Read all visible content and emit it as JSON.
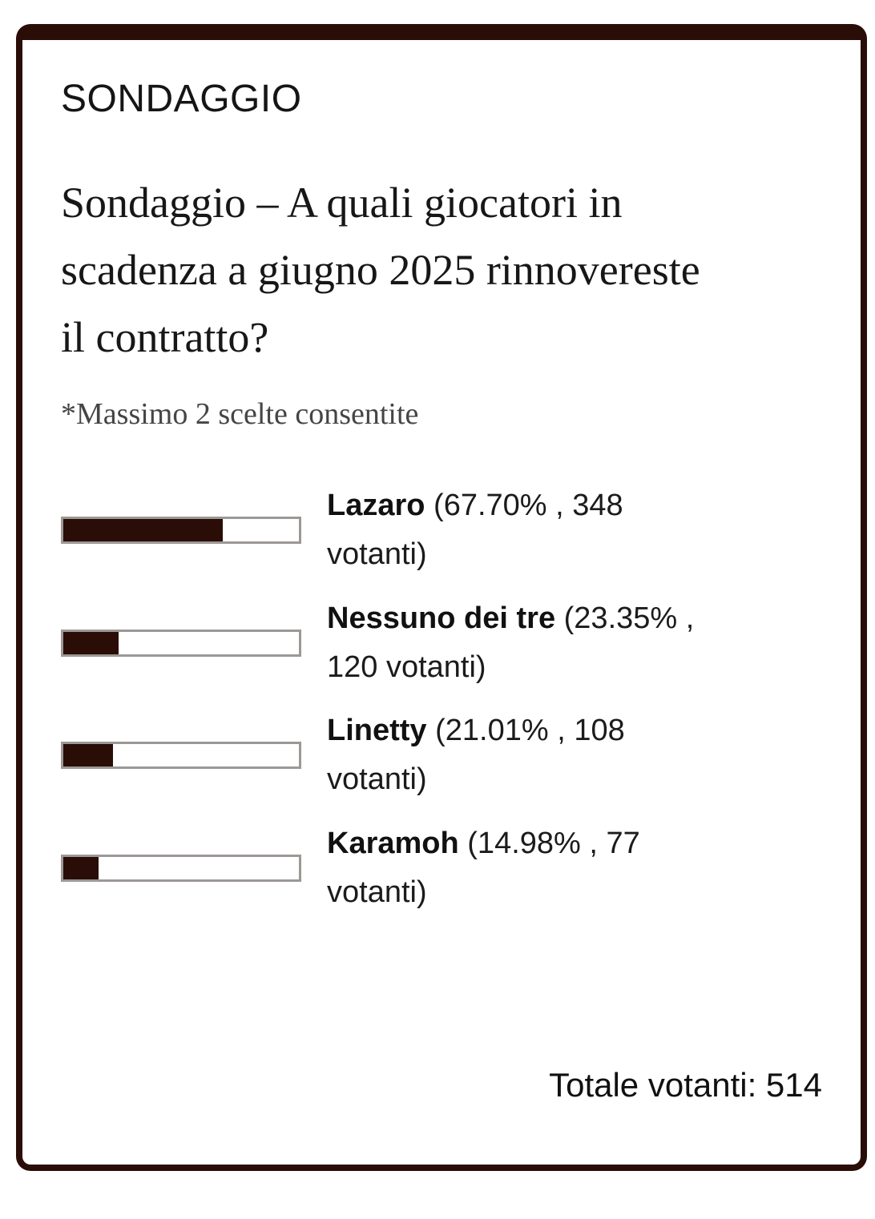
{
  "widget": {
    "kicker": "SONDAGGIO",
    "question": "Sondaggio – A quali giocatori in scadenza a giugno 2025 rinnovereste il contratto?",
    "note": "*Massimo 2 scelte consentite",
    "total_label": "Totale votanti: 514"
  },
  "colors": {
    "accent": "#2a0d07",
    "card_border": "#2a0d07",
    "bar_track_border": "#9c9896",
    "bar_track_bg": "#ffffff",
    "card_bg": "#ffffff",
    "note_text": "#454545",
    "body_text": "#1b1b1b"
  },
  "options": [
    {
      "name": "Lazaro",
      "detail": "(67.70% , 348 votanti)",
      "percent": 67.7,
      "votes": 348
    },
    {
      "name": "Nessuno dei tre",
      "detail": "(23.35% , 120 votanti)",
      "percent": 23.35,
      "votes": 120
    },
    {
      "name": "Linetty",
      "detail": "(21.01% , 108 votanti)",
      "percent": 21.01,
      "votes": 108
    },
    {
      "name": "Karamoh",
      "detail": "(14.98% , 77 votanti)",
      "percent": 14.98,
      "votes": 77
    }
  ],
  "chart_data": {
    "type": "bar",
    "orientation": "horizontal",
    "title": "Sondaggio – A quali giocatori in scadenza a giugno 2025 rinnovereste il contratto?",
    "subtitle": "*Massimo 2 scelte consentite",
    "categories": [
      "Lazaro",
      "Nessuno dei tre",
      "Linetty",
      "Karamoh"
    ],
    "values": [
      67.7,
      23.35,
      21.01,
      14.98
    ],
    "votes": [
      348,
      120,
      108,
      77
    ],
    "total_votes": 514,
    "xlabel": "",
    "ylabel": "",
    "xlim": [
      0,
      100
    ],
    "grid": false,
    "legend": false,
    "bar_color": "#2a0d07"
  }
}
